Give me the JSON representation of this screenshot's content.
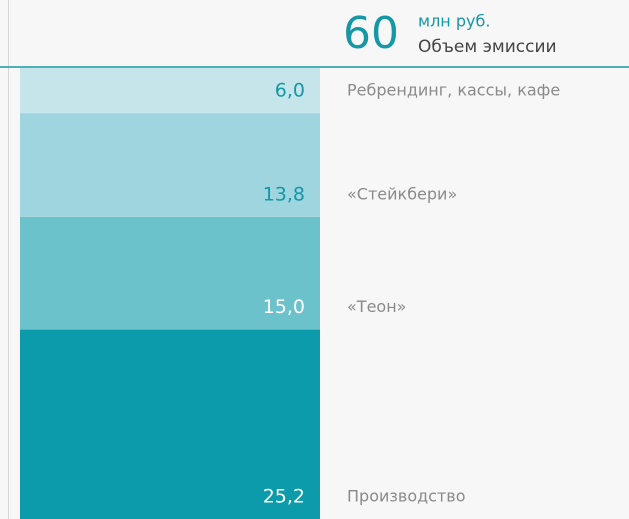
{
  "chart_data": {
    "type": "bar",
    "stacked": true,
    "total": 60,
    "total_unit": "млн руб.",
    "total_label": "Объем эмиссии",
    "categories": [
      "Ребрендинг, кассы, кафе",
      "«Стейкбери»",
      "«Теон»",
      "Производство"
    ],
    "values": [
      6.0,
      13.8,
      15.0,
      25.2
    ],
    "value_labels": [
      "6,0",
      "13,8",
      "15,0",
      "25,2"
    ],
    "colors": [
      "#c6e5eb",
      "#9fd5df",
      "#6cc2cb",
      "#0b9bab"
    ],
    "value_label_colors": [
      "#1597a6",
      "#1597a6",
      "#ffffff",
      "#ffffff"
    ],
    "ylim": [
      0,
      60
    ]
  }
}
